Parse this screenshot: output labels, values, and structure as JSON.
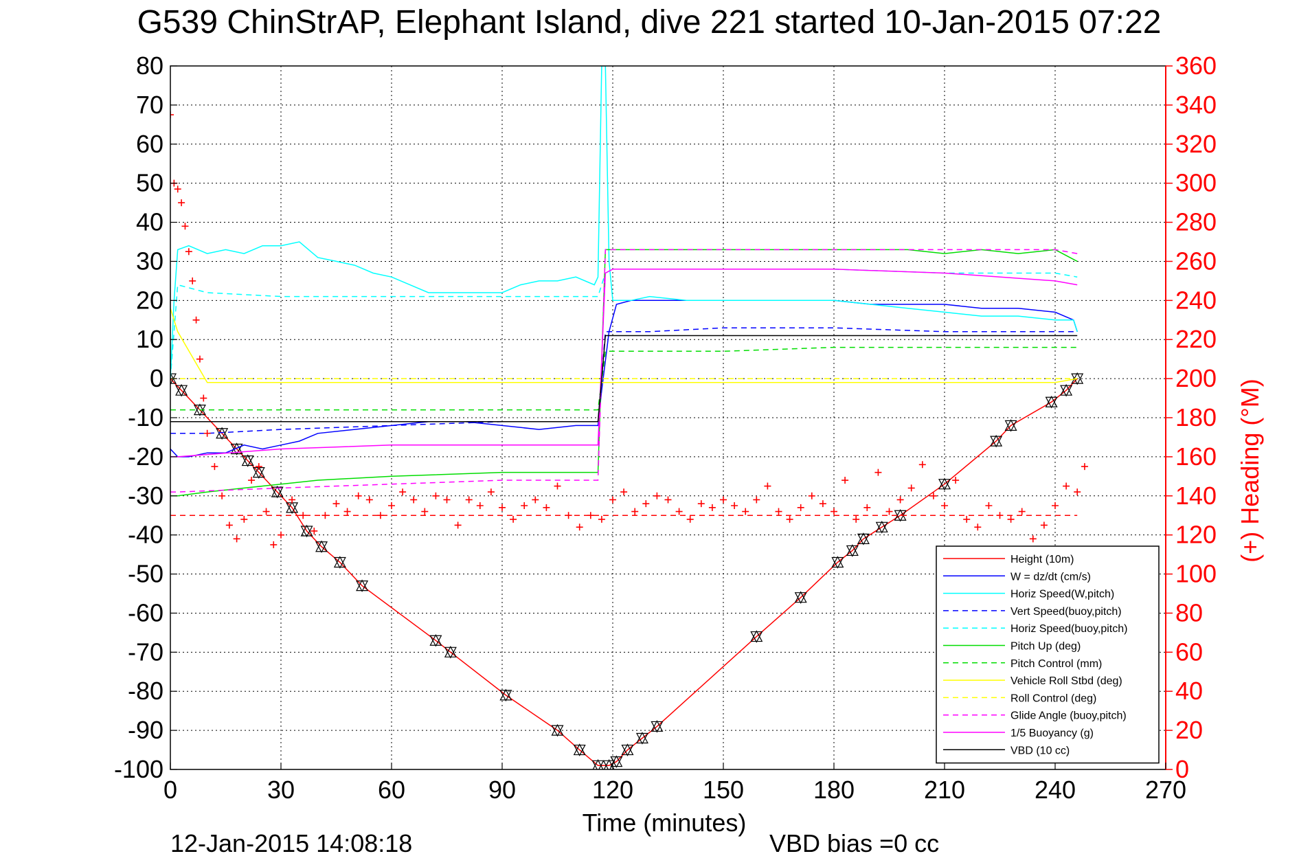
{
  "chart_data": {
    "type": "line",
    "title": "G539 ChinStrAP, Elephant Island, dive 221 started 10-Jan-2015 07:22",
    "xlabel": "Time (minutes)",
    "ylabel": "",
    "ylabel_right": "(+) Heading (°M)",
    "xlim": [
      0,
      270
    ],
    "ylim": [
      -100,
      80
    ],
    "ylim_right": [
      0,
      360
    ],
    "xticks": [
      0,
      30,
      60,
      90,
      120,
      150,
      180,
      210,
      240,
      270
    ],
    "yticks": [
      80,
      70,
      60,
      50,
      40,
      30,
      20,
      10,
      0,
      -10,
      -20,
      -30,
      -40,
      -50,
      -60,
      -70,
      -80,
      -90,
      -100
    ],
    "yticks_right": [
      360,
      340,
      320,
      300,
      280,
      260,
      240,
      220,
      200,
      180,
      160,
      140,
      120,
      100,
      80,
      60,
      40,
      20,
      0
    ],
    "grid": true,
    "legend_position": "bottom-right",
    "footer_left": "12-Jan-2015 14:08:18",
    "footer_right": "VBD bias =0 cc",
    "series": [
      {
        "name": "Height (10m)",
        "color": "#ff0000",
        "dash": "solid",
        "marker": "triangles",
        "x": [
          0,
          3,
          8,
          14,
          18,
          21,
          24,
          29,
          33,
          37,
          41,
          46,
          52,
          72,
          76,
          91,
          105,
          111,
          116,
          119,
          121,
          124,
          128,
          132,
          159,
          171,
          181,
          185,
          188,
          193,
          198,
          210,
          224,
          228,
          239,
          243,
          246
        ],
        "y": [
          0,
          -3,
          -8,
          -14,
          -18,
          -21,
          -24,
          -29,
          -33,
          -39,
          -43,
          -47,
          -53,
          -67,
          -70,
          -81,
          -90,
          -95,
          -99,
          -99,
          -98,
          -95,
          -92,
          -89,
          -66,
          -56,
          -47,
          -44,
          -41,
          -38,
          -35,
          -27,
          -16,
          -12,
          -6,
          -3,
          0
        ]
      },
      {
        "name": "W = dz/dt (cm/s)",
        "color": "#0000ff",
        "dash": "solid",
        "marker": "none",
        "x": [
          0,
          2,
          5,
          10,
          15,
          20,
          25,
          30,
          35,
          40,
          50,
          60,
          70,
          80,
          90,
          100,
          110,
          116,
          117,
          119,
          121,
          125,
          130,
          140,
          150,
          160,
          170,
          180,
          190,
          200,
          210,
          220,
          230,
          240,
          245,
          246
        ],
        "y": [
          -18,
          -20,
          -20,
          -19,
          -19,
          -17,
          -18,
          -17,
          -16,
          -14,
          -13,
          -12,
          -11,
          -11,
          -12,
          -13,
          -12,
          -12,
          -3,
          12,
          19,
          20,
          20,
          20,
          20,
          20,
          20,
          20,
          19,
          19,
          19,
          18,
          18,
          17,
          15,
          12
        ]
      },
      {
        "name": "Horiz Speed(W,pitch)",
        "color": "#00ffff",
        "dash": "solid",
        "marker": "none",
        "x": [
          0,
          1,
          2,
          5,
          10,
          15,
          20,
          25,
          30,
          35,
          40,
          45,
          50,
          55,
          60,
          65,
          70,
          80,
          90,
          95,
          100,
          105,
          110,
          115,
          116,
          117,
          118,
          119,
          120,
          125,
          130,
          140,
          150,
          160,
          170,
          180,
          190,
          200,
          210,
          220,
          230,
          240,
          245,
          246
        ],
        "y": [
          0,
          20,
          33,
          34,
          32,
          33,
          32,
          34,
          34,
          35,
          31,
          30,
          29,
          27,
          26,
          24,
          22,
          22,
          22,
          24,
          25,
          25,
          26,
          24,
          26,
          80,
          80,
          30,
          20,
          20,
          21,
          20,
          20,
          20,
          20,
          20,
          19,
          18,
          17,
          16,
          16,
          15,
          15,
          12
        ]
      },
      {
        "name": "Vert Speed(buoy,pitch)",
        "color": "#0000ff",
        "dash": "dashed",
        "marker": "none",
        "x": [
          0,
          2,
          10,
          30,
          60,
          90,
          116,
          118,
          120,
          130,
          150,
          180,
          210,
          240,
          246
        ],
        "y": [
          -14,
          -14,
          -14,
          -13,
          -12,
          -11,
          -11,
          12,
          12,
          12,
          13,
          13,
          12,
          12,
          12
        ]
      },
      {
        "name": "Horiz Speed(buoy,pitch)",
        "color": "#00ffff",
        "dash": "dashed",
        "marker": "none",
        "x": [
          0,
          2,
          10,
          30,
          60,
          90,
          116,
          118,
          120,
          150,
          180,
          210,
          240,
          246
        ],
        "y": [
          0,
          24,
          22,
          21,
          21,
          21,
          21,
          27,
          28,
          28,
          28,
          27,
          27,
          26
        ]
      },
      {
        "name": "Pitch Up (deg)",
        "color": "#00dd00",
        "dash": "solid",
        "marker": "none",
        "x": [
          0,
          2,
          10,
          20,
          30,
          40,
          60,
          90,
          116,
          118,
          120,
          140,
          160,
          180,
          200,
          210,
          220,
          230,
          240,
          246
        ],
        "y": [
          -30,
          -30,
          -29,
          -28,
          -27,
          -26,
          -25,
          -24,
          -24,
          33,
          33,
          33,
          33,
          33,
          33,
          32,
          33,
          32,
          33,
          30
        ]
      },
      {
        "name": "Pitch Control (mm)",
        "color": "#00dd00",
        "dash": "dashed",
        "marker": "none",
        "x": [
          0,
          2,
          30,
          60,
          90,
          116,
          118,
          120,
          150,
          180,
          210,
          240,
          246
        ],
        "y": [
          -8,
          -8,
          -8,
          -8,
          -8,
          -8,
          7,
          7,
          7,
          8,
          8,
          8,
          8
        ]
      },
      {
        "name": "Vehicle Roll Stbd (deg)",
        "color": "#ffff00",
        "dash": "solid",
        "marker": "none",
        "x": [
          0,
          2,
          10,
          20,
          30,
          40,
          60,
          90,
          115,
          117,
          120,
          140,
          160,
          180,
          200,
          220,
          240,
          246
        ],
        "y": [
          18,
          12,
          -1,
          -1,
          -1,
          -1,
          -1,
          -1,
          -1,
          -1,
          -1,
          -1,
          -1,
          -1,
          -1,
          -1,
          -1,
          0
        ]
      },
      {
        "name": "Roll Control (deg)",
        "color": "#ffff00",
        "dash": "dashed",
        "marker": "none",
        "x": [
          0,
          2,
          30,
          60,
          90,
          116,
          118,
          150,
          180,
          210,
          240,
          246
        ],
        "y": [
          0,
          0,
          0,
          0,
          0,
          0,
          0,
          0,
          0,
          0,
          0,
          0
        ]
      },
      {
        "name": "Glide Angle (buoy,pitch)",
        "color": "#ff00ff",
        "dash": "dashed",
        "marker": "none",
        "x": [
          0,
          2,
          30,
          60,
          90,
          116,
          118,
          120,
          150,
          180,
          210,
          240,
          246
        ],
        "y": [
          -29,
          -29,
          -28,
          -27,
          -26,
          -26,
          33,
          33,
          33,
          33,
          33,
          33,
          32
        ]
      },
      {
        "name": "1/5 Buoyancy (g)",
        "color": "#ff00ff",
        "dash": "solid",
        "marker": "none",
        "x": [
          0,
          2,
          30,
          60,
          90,
          116,
          118,
          120,
          150,
          180,
          210,
          240,
          246
        ],
        "y": [
          -20,
          -20,
          -18,
          -17,
          -17,
          -17,
          27,
          28,
          28,
          28,
          27,
          25,
          24
        ]
      },
      {
        "name": "VBD (10 cc)",
        "color": "#000000",
        "dash": "solid",
        "marker": "none",
        "x": [
          0,
          2,
          30,
          60,
          90,
          116,
          118,
          120,
          150,
          180,
          210,
          240,
          246
        ],
        "y": [
          -11,
          -11,
          -11,
          -11,
          -11,
          -11,
          11,
          11,
          11,
          11,
          11,
          11,
          11
        ]
      },
      {
        "name": "",
        "color": "#ff0000",
        "dash": "dashed",
        "marker": "none",
        "x": [
          0,
          246
        ],
        "y": [
          -35,
          -35
        ]
      }
    ],
    "heading_series": {
      "color": "#ff0000",
      "marker": "plus",
      "axis": "right",
      "x": [
        0,
        1,
        2,
        3,
        4,
        5,
        6,
        7,
        8,
        9,
        10,
        12,
        14,
        16,
        18,
        20,
        22,
        24,
        26,
        28,
        30,
        33,
        36,
        39,
        42,
        45,
        48,
        51,
        54,
        57,
        60,
        63,
        66,
        69,
        72,
        75,
        78,
        81,
        84,
        87,
        90,
        93,
        96,
        99,
        102,
        105,
        108,
        111,
        114,
        117,
        120,
        123,
        126,
        129,
        132,
        135,
        138,
        141,
        144,
        147,
        150,
        153,
        156,
        159,
        162,
        165,
        168,
        171,
        174,
        177,
        180,
        183,
        186,
        189,
        192,
        195,
        198,
        201,
        204,
        207,
        210,
        213,
        216,
        219,
        222,
        225,
        228,
        231,
        234,
        237,
        240,
        243,
        246,
        248
      ],
      "y": [
        335,
        300,
        297,
        290,
        278,
        265,
        250,
        230,
        210,
        190,
        172,
        155,
        140,
        125,
        118,
        128,
        148,
        155,
        132,
        115,
        120,
        138,
        130,
        122,
        130,
        136,
        132,
        140,
        138,
        130,
        135,
        142,
        138,
        132,
        140,
        138,
        125,
        138,
        135,
        142,
        134,
        128,
        135,
        138,
        134,
        145,
        130,
        124,
        130,
        128,
        138,
        142,
        132,
        136,
        140,
        138,
        132,
        128,
        136,
        134,
        138,
        135,
        132,
        138,
        145,
        132,
        128,
        134,
        140,
        136,
        132,
        148,
        128,
        134,
        152,
        132,
        138,
        144,
        156,
        140,
        135,
        148,
        128,
        124,
        135,
        130,
        128,
        132,
        118,
        125,
        135,
        145,
        142,
        155
      ]
    }
  }
}
